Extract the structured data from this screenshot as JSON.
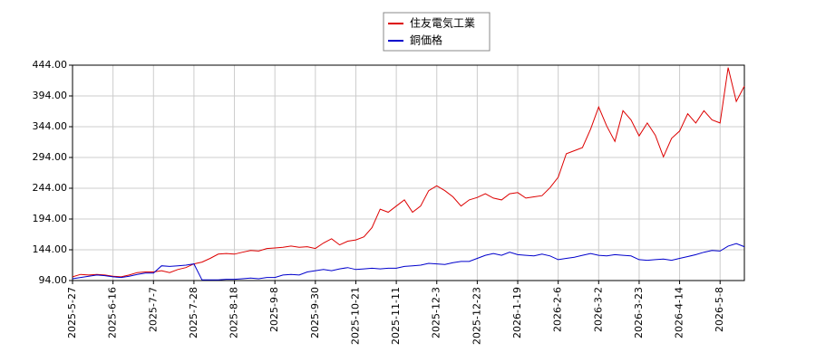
{
  "chart_data": {
    "type": "line",
    "categories": [
      "2025-5-27",
      null,
      null,
      null,
      null,
      "2025-6-16",
      null,
      null,
      null,
      null,
      "2025-7-7",
      null,
      null,
      null,
      null,
      "2025-7-28",
      null,
      null,
      null,
      null,
      "2025-8-18",
      null,
      null,
      null,
      null,
      "2025-9-8",
      null,
      null,
      null,
      null,
      "2025-9-30",
      null,
      null,
      null,
      null,
      "2025-10-21",
      null,
      null,
      null,
      null,
      "2025-11-11",
      null,
      null,
      null,
      null,
      "2025-12-3",
      null,
      null,
      null,
      null,
      "2025-12-23",
      null,
      null,
      null,
      null,
      "2026-1-19",
      null,
      null,
      null,
      null,
      "2026-2-6",
      null,
      null,
      null,
      null,
      "2026-3-2",
      null,
      null,
      null,
      null,
      "2026-3-23",
      null,
      null,
      null,
      null,
      "2026-4-14",
      null,
      null,
      null,
      null,
      "2026-5-8",
      null,
      null,
      null
    ],
    "series": [
      {
        "name": "住友電気工業",
        "color": "#dd0000",
        "values": [
          100,
          104,
          103,
          104,
          103,
          101,
          100,
          103,
          107,
          108,
          108,
          110,
          107,
          112,
          115,
          121,
          124,
          130,
          137,
          138,
          137,
          140,
          143,
          142,
          146,
          147,
          148,
          150,
          148,
          149,
          146,
          155,
          162,
          152,
          158,
          160,
          165,
          180,
          210,
          205,
          215,
          225,
          205,
          215,
          240,
          248,
          240,
          230,
          215,
          225,
          229,
          235,
          228,
          225,
          235,
          237,
          228,
          230,
          232,
          245,
          262,
          300,
          305,
          310,
          340,
          376,
          345,
          320,
          370,
          355,
          329,
          350,
          330,
          295,
          325,
          337,
          365,
          350,
          370,
          355,
          350,
          440,
          385,
          410
        ]
      },
      {
        "name": "銅価格",
        "color": "#0000cc",
        "values": [
          97,
          99,
          101,
          103,
          102,
          100,
          99,
          101,
          104,
          106,
          106,
          118,
          117,
          118,
          119,
          121,
          95,
          95,
          95,
          96,
          96,
          97,
          98,
          97,
          99,
          99,
          103,
          104,
          103,
          108,
          110,
          112,
          110,
          113,
          115,
          112,
          113,
          114,
          113,
          114,
          114,
          117,
          118,
          119,
          122,
          121,
          120,
          123,
          125,
          125,
          130,
          135,
          138,
          135,
          140,
          136,
          135,
          134,
          137,
          134,
          128,
          130,
          132,
          135,
          138,
          135,
          134,
          136,
          135,
          134,
          128,
          127,
          128,
          129,
          127,
          130,
          133,
          136,
          140,
          143,
          142,
          150,
          154,
          149
        ]
      }
    ],
    "ylim": [
      94,
      444
    ],
    "yticks": [
      {
        "value": 94,
        "label": "94.00"
      },
      {
        "value": 144,
        "label": "144.00"
      },
      {
        "value": 194,
        "label": "194.00"
      },
      {
        "value": 244,
        "label": "244.00"
      },
      {
        "value": 294,
        "label": "294.00"
      },
      {
        "value": 344,
        "label": "344.00"
      },
      {
        "value": 394,
        "label": "394.00"
      },
      {
        "value": 444,
        "label": "444.00"
      }
    ],
    "grid": true,
    "legend": "top"
  }
}
